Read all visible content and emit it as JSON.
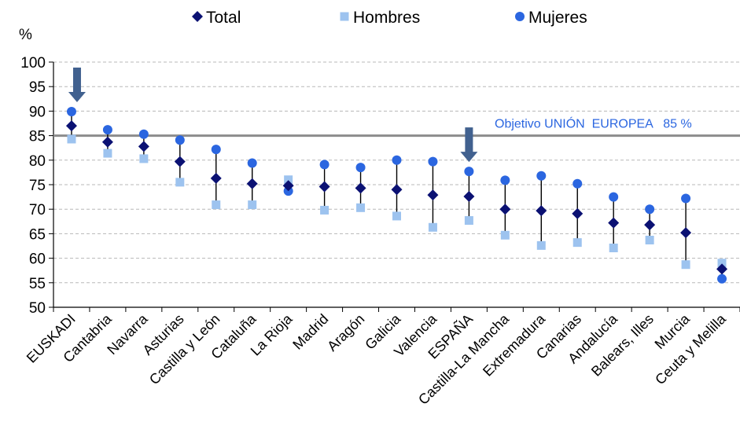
{
  "chart_data": {
    "type": "scatter",
    "ylabel": "%",
    "ylim": [
      50,
      100
    ],
    "ytick_step": 5,
    "grid": true,
    "legend_position": "top",
    "categories": [
      "EUSKADI",
      "Cantabria",
      "Navarra",
      "Asturias",
      "Castilla y León",
      "Cataluña",
      "La Rioja",
      "Madrid",
      "Aragón",
      "Galicia",
      "Valencia",
      "ESPAÑA",
      "Castilla-La Mancha",
      "Extremadura",
      "Canarias",
      "Andalucía",
      "Balears, Illes",
      "Murcia",
      "Ceuta y Melilla"
    ],
    "series": [
      {
        "name": "Total",
        "marker": "diamond",
        "color": "#0b1173",
        "values": [
          87.0,
          83.7,
          82.8,
          79.7,
          76.3,
          75.2,
          74.8,
          74.6,
          74.3,
          74.0,
          72.9,
          72.6,
          70.0,
          69.7,
          69.1,
          67.2,
          66.8,
          65.2,
          57.8
        ]
      },
      {
        "name": "Hombres",
        "marker": "square",
        "color": "#9dc3ef",
        "values": [
          84.3,
          81.4,
          80.3,
          75.5,
          70.9,
          70.9,
          76.0,
          69.8,
          70.3,
          68.6,
          66.3,
          67.7,
          64.7,
          62.6,
          63.2,
          62.1,
          63.7,
          58.7,
          59.0
        ]
      },
      {
        "name": "Mujeres",
        "marker": "circle",
        "color": "#2b66e0",
        "values": [
          89.9,
          86.2,
          85.3,
          84.1,
          82.2,
          79.4,
          73.7,
          79.1,
          78.5,
          80.0,
          79.7,
          77.7,
          75.9,
          76.8,
          75.2,
          72.5,
          70.0,
          72.2,
          55.8
        ]
      }
    ],
    "reference_line": {
      "value": 85,
      "label": "Objetivo UNIÓN  EUROPEA   85 %",
      "color": "#8c8c8c",
      "label_color": "#2b66e0"
    },
    "highlighted_categories": [
      "EUSKADI",
      "ESPAÑA"
    ],
    "arrow_color": "#41618f",
    "range_line_color": "#000000"
  }
}
